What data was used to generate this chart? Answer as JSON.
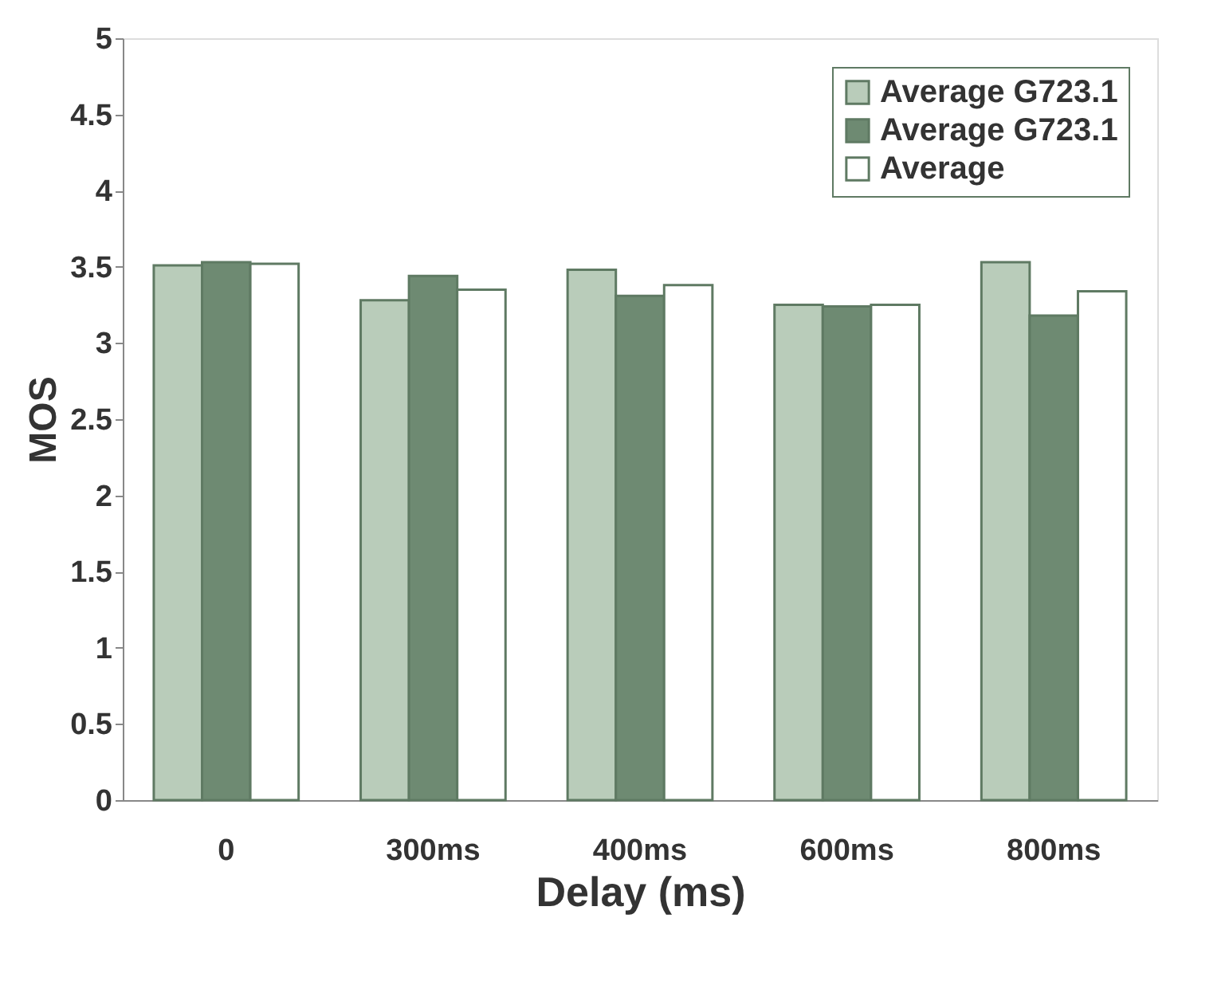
{
  "chart_data": {
    "type": "bar",
    "xlabel": "Delay (ms)",
    "ylabel": "MOS",
    "categories": [
      "0",
      "300ms",
      "400ms",
      "600ms",
      "800ms"
    ],
    "series": [
      {
        "name": "Average G723.1",
        "color": "#b9ccba",
        "values": [
          3.51,
          3.28,
          3.48,
          3.25,
          3.53
        ]
      },
      {
        "name": "Average G723.1",
        "color": "#6e8a72",
        "values": [
          3.53,
          3.44,
          3.31,
          3.24,
          3.18
        ]
      },
      {
        "name": "Average",
        "color": "#ffffff",
        "values": [
          3.52,
          3.35,
          3.38,
          3.25,
          3.34
        ]
      }
    ],
    "ylim": [
      0,
      5
    ],
    "yticks": [
      0,
      0.5,
      1,
      1.5,
      2,
      2.5,
      3,
      3.5,
      4,
      4.5,
      5
    ],
    "grid": false,
    "legend": "top right"
  }
}
